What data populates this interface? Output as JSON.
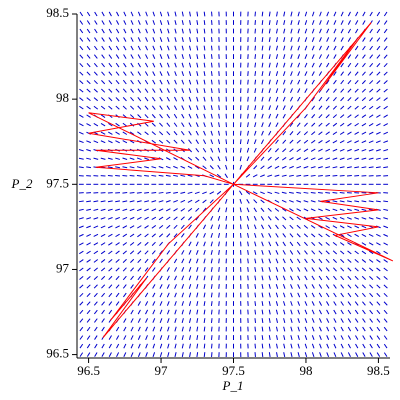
{
  "chart_data": {
    "type": "fieldplot",
    "x_label": "P_1",
    "y_label": "P_2",
    "xlim": [
      96.42,
      98.58
    ],
    "ylim": [
      96.48,
      98.5
    ],
    "xticks": [
      96.5,
      97,
      97.5,
      98,
      98.5
    ],
    "yticks": [
      96.5,
      97,
      97.5,
      98,
      98.5
    ],
    "field": {
      "center": [
        97.5,
        97.5
      ],
      "step": 0.05,
      "color": "#0000cc"
    },
    "series": [
      {
        "color": "#ff0000",
        "x": [
          97.5,
          98.45,
          98.1,
          98.35,
          98.0,
          97.5
        ],
        "y": [
          97.5,
          98.45,
          98.05,
          98.35,
          97.95,
          97.5
        ]
      },
      {
        "color": "#ff0000",
        "x": [
          97.5,
          96.5,
          96.95,
          96.5,
          97.2,
          96.55,
          97.0,
          96.55,
          97.3,
          97.5
        ],
        "y": [
          97.5,
          97.92,
          97.87,
          97.8,
          97.7,
          97.7,
          97.65,
          97.6,
          97.55,
          97.5
        ]
      },
      {
        "color": "#ff0000",
        "x": [
          97.5,
          98.5,
          98.1,
          98.5,
          98.0,
          98.5,
          98.2,
          98.6,
          97.5
        ],
        "y": [
          97.5,
          97.45,
          97.4,
          97.35,
          97.3,
          97.25,
          97.2,
          97.05,
          97.5
        ]
      },
      {
        "color": "#ff0000",
        "x": [
          97.5,
          96.6,
          96.9,
          96.65,
          97.05,
          97.5
        ],
        "y": [
          97.5,
          96.6,
          96.95,
          96.7,
          97.15,
          97.5
        ]
      }
    ]
  }
}
